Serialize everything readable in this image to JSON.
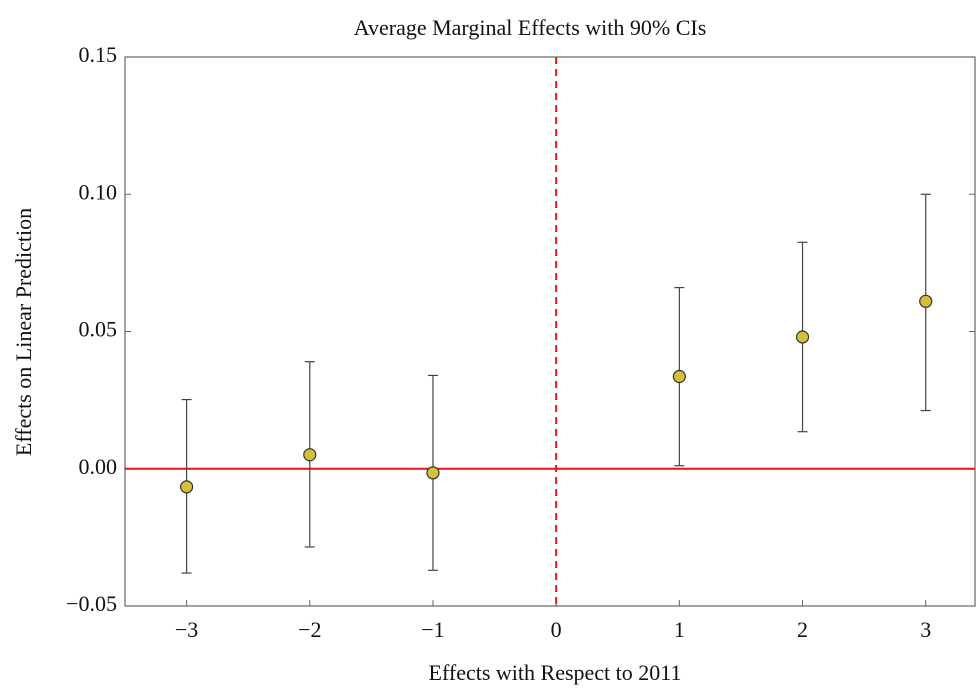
{
  "chart_data": {
    "type": "scatter",
    "title": "Average Marginal Effects with 90% CIs",
    "x_label": "Effects with Respect to 2011",
    "y_label": "Effects on Linear Prediction",
    "x": [
      -3,
      -2,
      -1,
      1,
      2,
      3
    ],
    "values": [
      -0.0066,
      0.0051,
      -0.0015,
      0.0336,
      0.048,
      0.061
    ],
    "ci_low": [
      -0.038,
      -0.0285,
      -0.037,
      0.0011,
      0.0135,
      0.0212
    ],
    "ci_high": [
      0.0252,
      0.039,
      0.034,
      0.066,
      0.0825,
      0.1
    ],
    "color": "#d4bf3a",
    "reference_color": "#e8141c",
    "hline": 0,
    "vline": 0,
    "xlim": [
      -3.5,
      3.4
    ],
    "ylim": [
      -0.05,
      0.15
    ],
    "xticks": [
      {
        "value": -3,
        "label": "−3"
      },
      {
        "value": -2,
        "label": "−2"
      },
      {
        "value": -1,
        "label": "−1"
      },
      0,
      1,
      2,
      3
    ],
    "yticks": [
      {
        "value": -0.05,
        "label": "−0.05"
      },
      {
        "value": 0,
        "label": "0.00"
      },
      {
        "value": 0.05,
        "label": "0.05"
      },
      {
        "value": 0.1,
        "label": "0.10"
      },
      {
        "value": 0.15,
        "label": "0.15"
      }
    ]
  }
}
